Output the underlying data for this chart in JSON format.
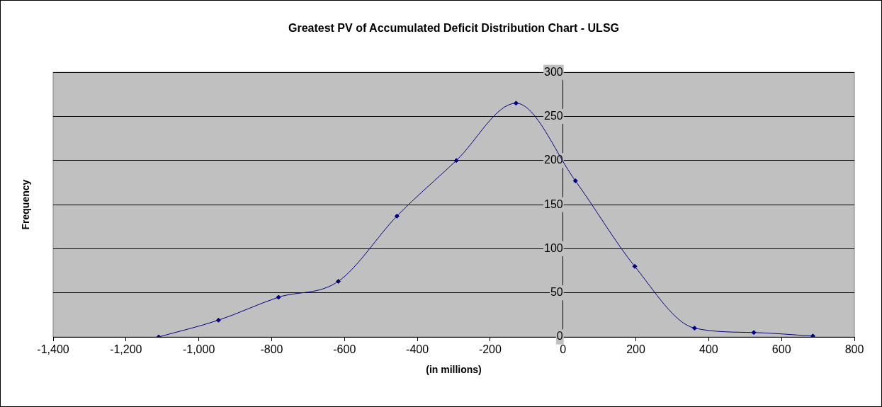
{
  "chart_data": {
    "type": "line",
    "title": "Greatest PV of Accumulated Deficit Distribution Chart - ULSG",
    "xlabel": "(in millions)",
    "ylabel": "Frequency",
    "x": [
      -1110,
      -946,
      -781,
      -617,
      -456,
      -293,
      -129,
      34,
      197,
      361,
      524,
      686
    ],
    "series": [
      {
        "color": "#000080",
        "values": [
          0,
          19,
          45,
          63,
          137,
          200,
          265,
          177,
          80,
          10,
          5,
          1
        ]
      }
    ],
    "xlim": [
      -1400,
      800
    ],
    "xticks": [
      {
        "value": -1400,
        "label": "-1,400"
      },
      {
        "value": -1200,
        "label": "-1,200"
      },
      {
        "value": -1000,
        "label": "-1,000"
      },
      -800,
      -600,
      -400,
      -200,
      0,
      200,
      400,
      600,
      800
    ],
    "ylim": [
      0,
      300
    ],
    "yticks": [
      0,
      50,
      100,
      150,
      200,
      250,
      300
    ],
    "grid": "y",
    "legend": false,
    "marker": "diamond",
    "line_style": "solid"
  }
}
